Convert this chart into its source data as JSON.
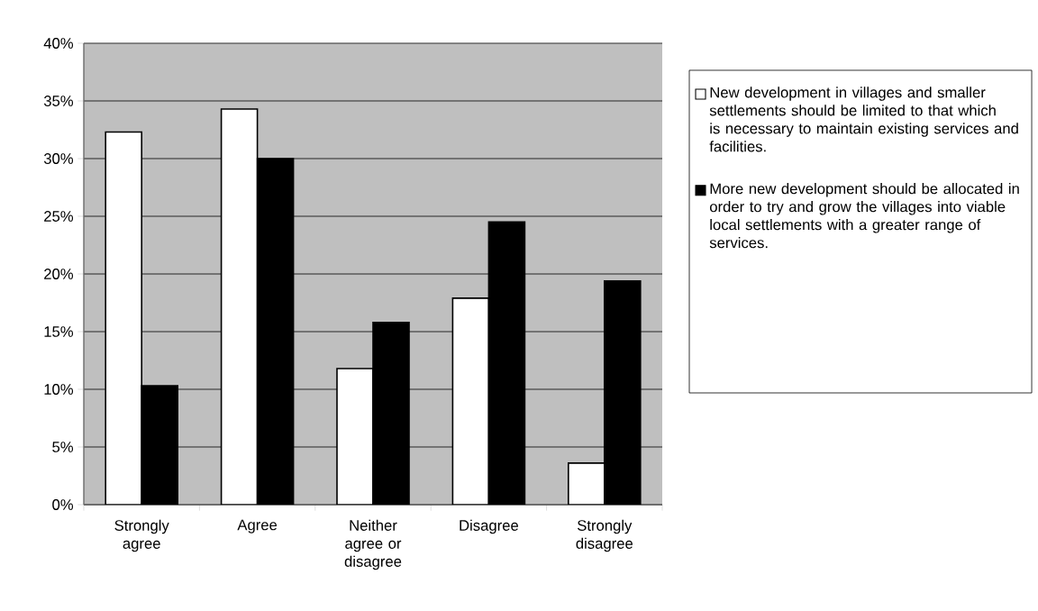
{
  "chart_data": {
    "type": "bar",
    "categories": [
      "Strongly agree",
      "Agree",
      "Neither agree or disagree",
      "Disagree",
      "Strongly disagree"
    ],
    "series": [
      {
        "name": "New development in villages and smaller settlements should be limited to that which is necessary to maintain existing services and facilities.",
        "color": "#ffffff",
        "values": [
          32.3,
          34.3,
          11.8,
          17.9,
          3.6
        ]
      },
      {
        "name": "More new development should be allocated in order to try and grow the villages into viable local settlements with a greater range of services.",
        "color": "#000000",
        "values": [
          10.3,
          30.0,
          15.8,
          24.5,
          19.4
        ]
      }
    ],
    "ylim": [
      0,
      40
    ],
    "yticks": [
      {
        "value": 0,
        "label": "0%"
      },
      {
        "value": 5,
        "label": "5%"
      },
      {
        "value": 10,
        "label": "10%"
      },
      {
        "value": 15,
        "label": "15%"
      },
      {
        "value": 20,
        "label": "20%"
      },
      {
        "value": 25,
        "label": "25%"
      },
      {
        "value": 30,
        "label": "30%"
      },
      {
        "value": 35,
        "label": "35%"
      },
      {
        "value": 40,
        "label": "40%"
      }
    ],
    "grid": "y",
    "legend": "right"
  }
}
